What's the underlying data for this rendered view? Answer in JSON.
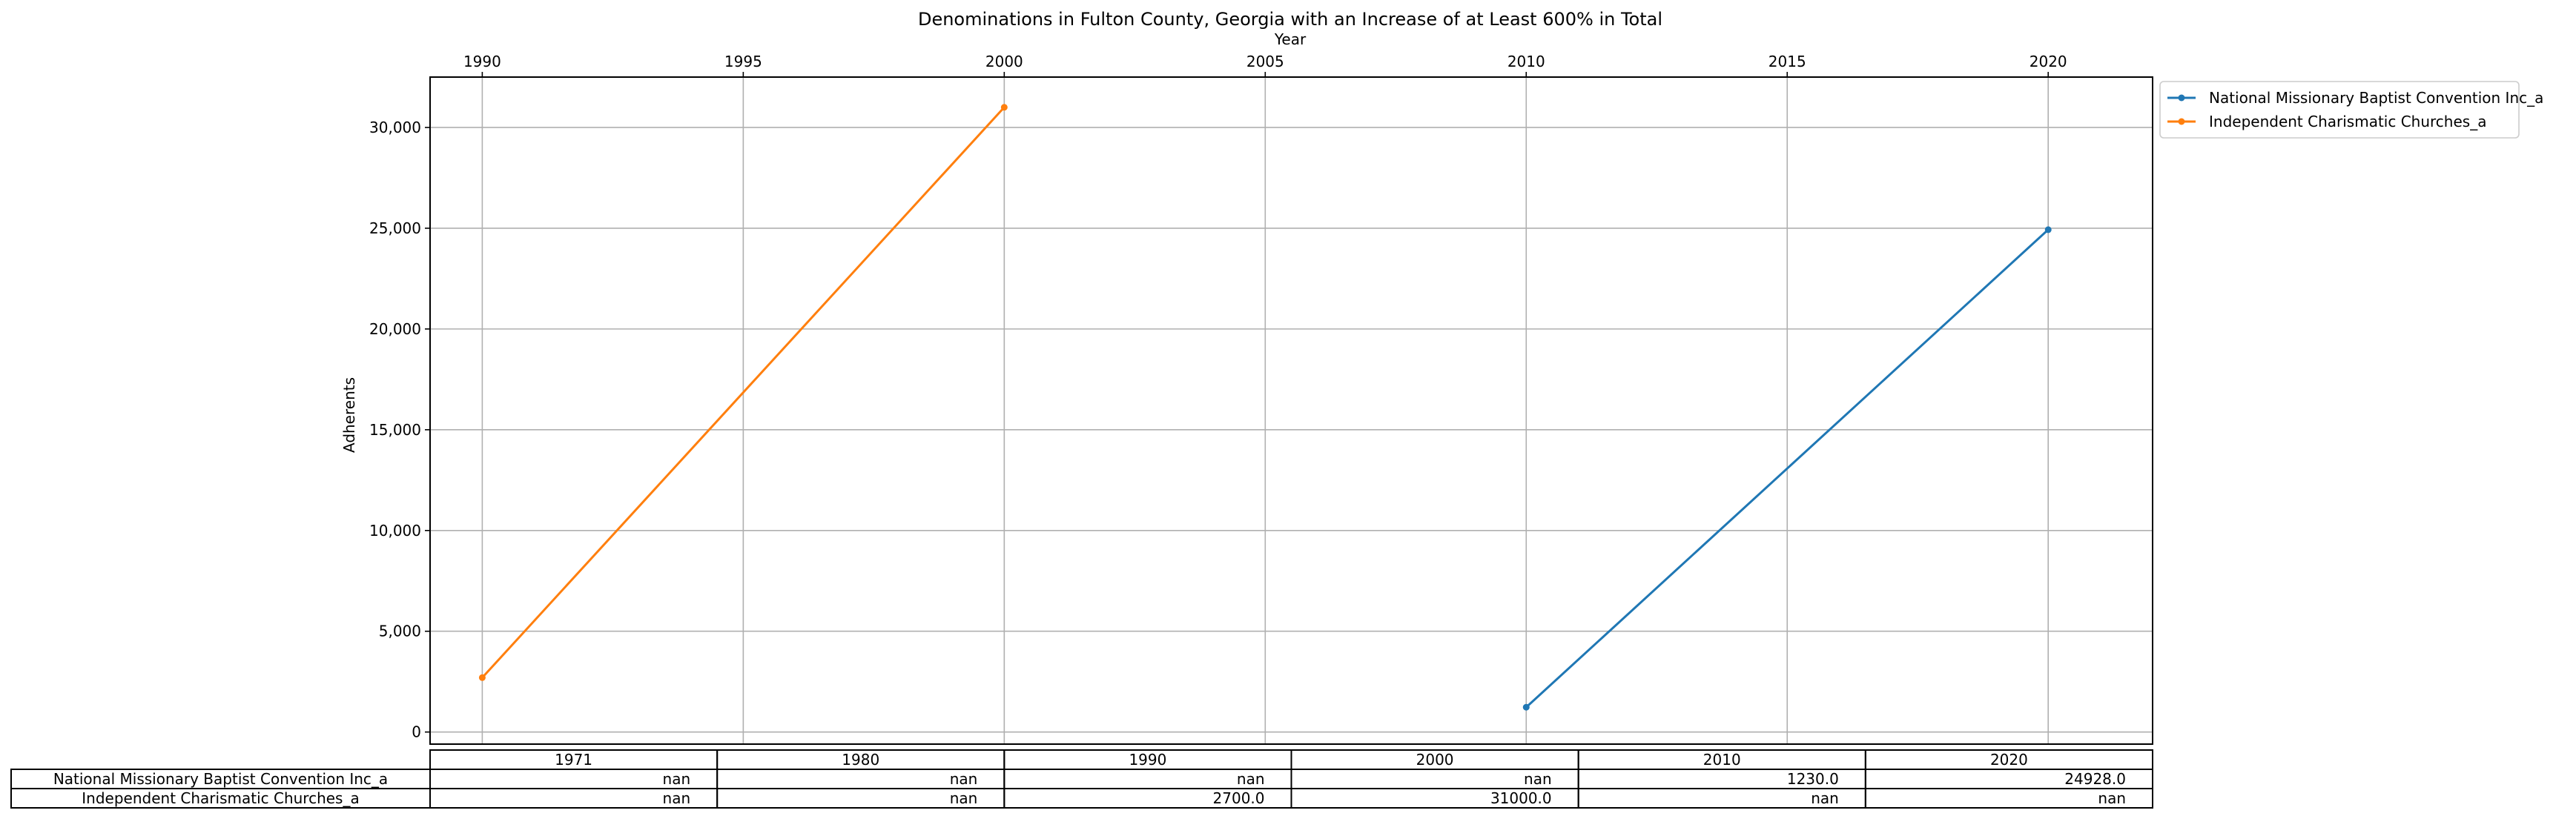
{
  "chart_data": {
    "type": "line",
    "title": "Denominations in Fulton County, Georgia with an Increase of at Least 600% in Total",
    "xlabel": "Year",
    "ylabel": "Adherents",
    "xlim": [
      1989,
      2022
    ],
    "ylim": [
      -600,
      32500
    ],
    "x_ticks": [
      1990,
      1995,
      2000,
      2005,
      2010,
      2015,
      2020
    ],
    "x_tick_labels": [
      "1990",
      "1995",
      "2000",
      "2005",
      "2010",
      "2015",
      "2020"
    ],
    "y_ticks": [
      0,
      5000,
      10000,
      15000,
      20000,
      25000,
      30000
    ],
    "y_tick_labels": [
      "0",
      "5,000",
      "10,000",
      "15,000",
      "20,000",
      "25,000",
      "30,000"
    ],
    "grid": true,
    "legend_position": "outside top-right",
    "series": [
      {
        "name": "National Missionary Baptist Convention Inc_a",
        "color": "#1f77b4",
        "points": [
          [
            2010,
            1230.0
          ],
          [
            2020,
            24928.0
          ]
        ]
      },
      {
        "name": "Independent Charismatic Churches_a",
        "color": "#ff7f0e",
        "points": [
          [
            1990,
            2700.0
          ],
          [
            2000,
            31000.0
          ]
        ]
      }
    ],
    "table": {
      "columns": [
        "1971",
        "1980",
        "1990",
        "2000",
        "2010",
        "2020"
      ],
      "rows": [
        {
          "label": "National Missionary Baptist Convention Inc_a",
          "cells": [
            "nan",
            "nan",
            "nan",
            "nan",
            "1230.0",
            "24928.0"
          ]
        },
        {
          "label": "Independent Charismatic Churches_a",
          "cells": [
            "nan",
            "nan",
            "2700.0",
            "31000.0",
            "nan",
            "nan"
          ]
        }
      ]
    }
  }
}
